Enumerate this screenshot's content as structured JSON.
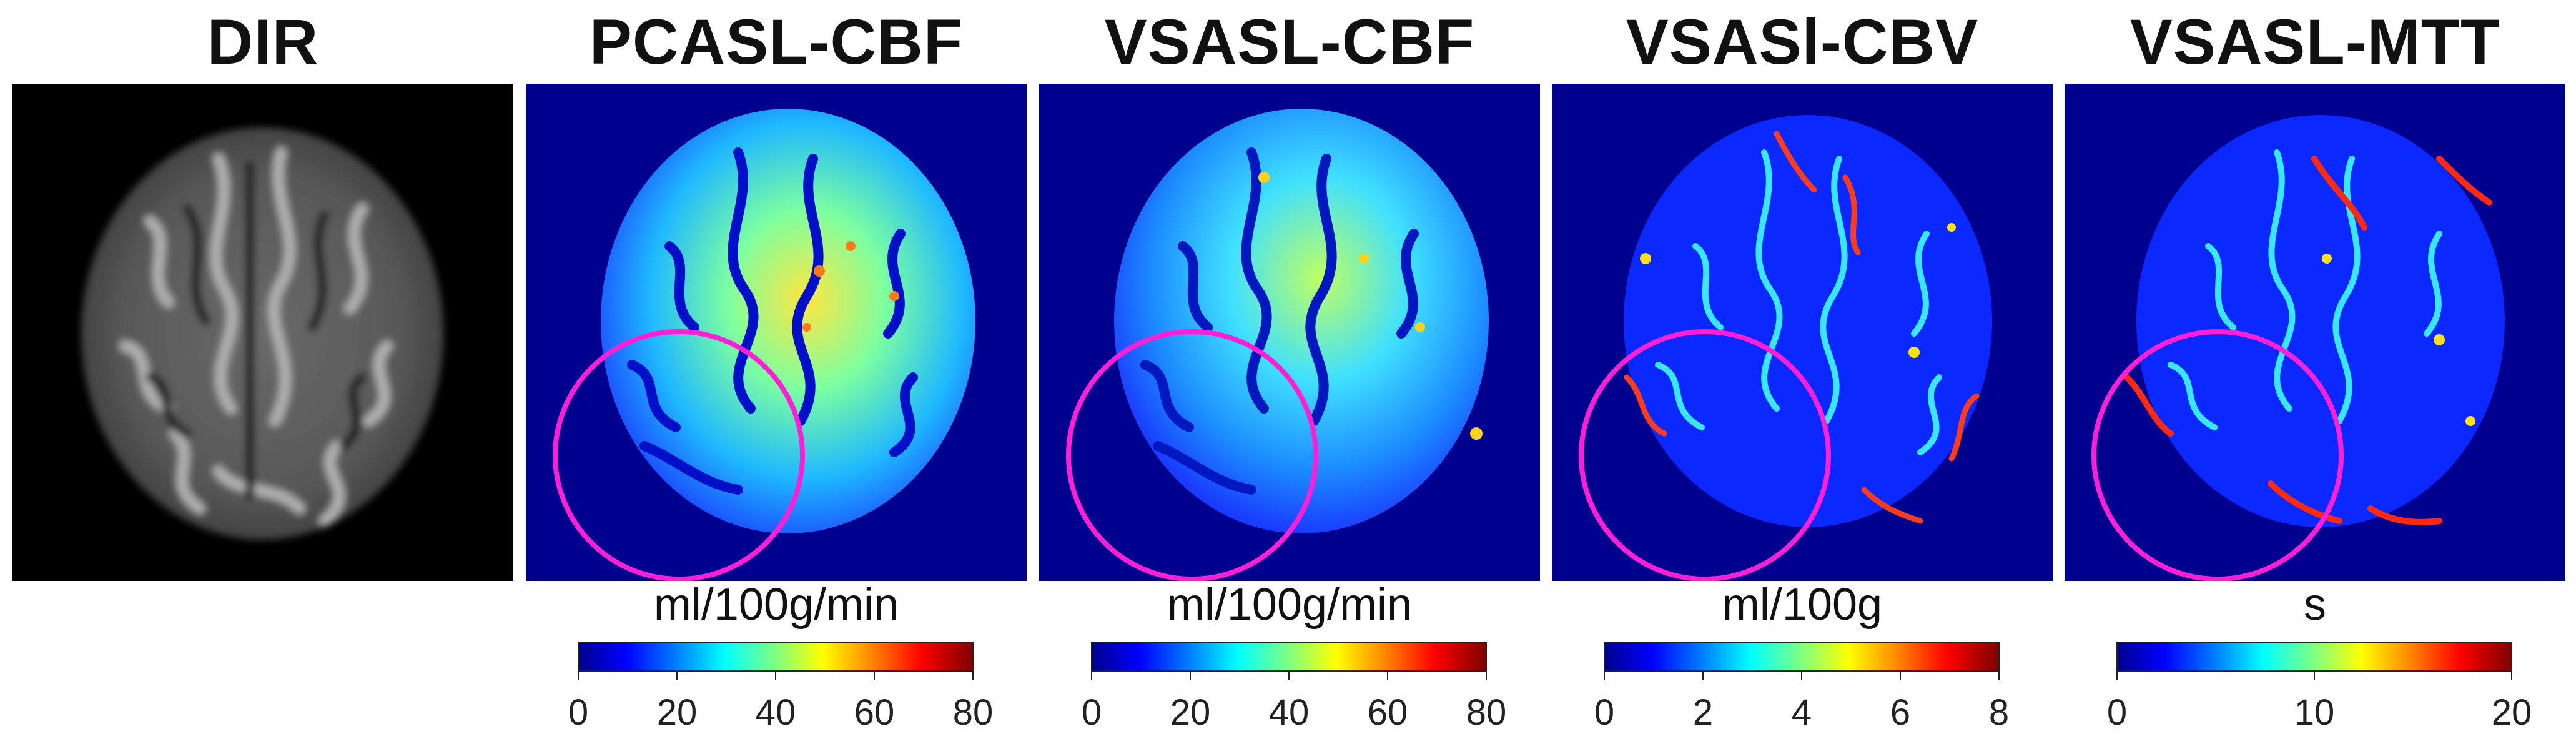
{
  "figure": {
    "panels": [
      {
        "title": "DIR",
        "image": "grayscale-brain-axial-slice"
      },
      {
        "title": "PCASL-CBF",
        "image": "jet-colormap-perfusion-map"
      },
      {
        "title": "VSASL-CBF",
        "image": "jet-colormap-perfusion-map"
      },
      {
        "title": "VSASl-CBV",
        "image": "jet-colormap-perfusion-map"
      },
      {
        "title": "VSASL-MTT",
        "image": "jet-colormap-perfusion-map"
      }
    ],
    "colorbars": [
      {
        "unit": "ml/100g/min",
        "ticks": [
          "0",
          "20",
          "40",
          "60",
          "80"
        ]
      },
      {
        "unit": "ml/100g/min",
        "ticks": [
          "0",
          "20",
          "40",
          "60",
          "80"
        ]
      },
      {
        "unit": "ml/100g",
        "ticks": [
          "0",
          "2",
          "4",
          "6",
          "8"
        ]
      },
      {
        "unit": "s",
        "ticks": [
          "0",
          "10",
          "20"
        ]
      }
    ],
    "colors": {
      "map_background": "#00008f",
      "annotation_circle": "#ff1fd6",
      "dir_background": "#000000"
    }
  }
}
